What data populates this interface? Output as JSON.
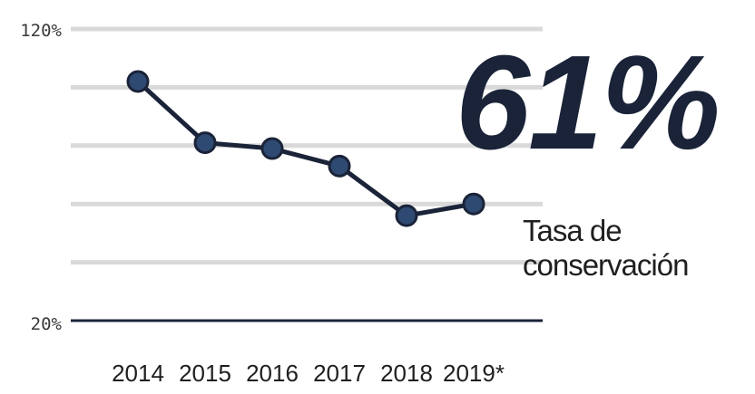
{
  "chart_data": {
    "type": "line",
    "categories": [
      "2014",
      "2015",
      "2016",
      "2017",
      "2018",
      "2019*"
    ],
    "series": [
      {
        "values": [
          102,
          81,
          79,
          73,
          56,
          60
        ]
      }
    ],
    "ylim": [
      20,
      120
    ],
    "yticks": [
      "120%",
      "20%"
    ],
    "grid": true,
    "colors": {
      "line": "#1a2338",
      "marker": "#2f4a72",
      "grid": "#d9d9d9",
      "axis": "#1a2338"
    }
  },
  "kpi": {
    "value": "61%",
    "label": "Tasa de conservación"
  }
}
